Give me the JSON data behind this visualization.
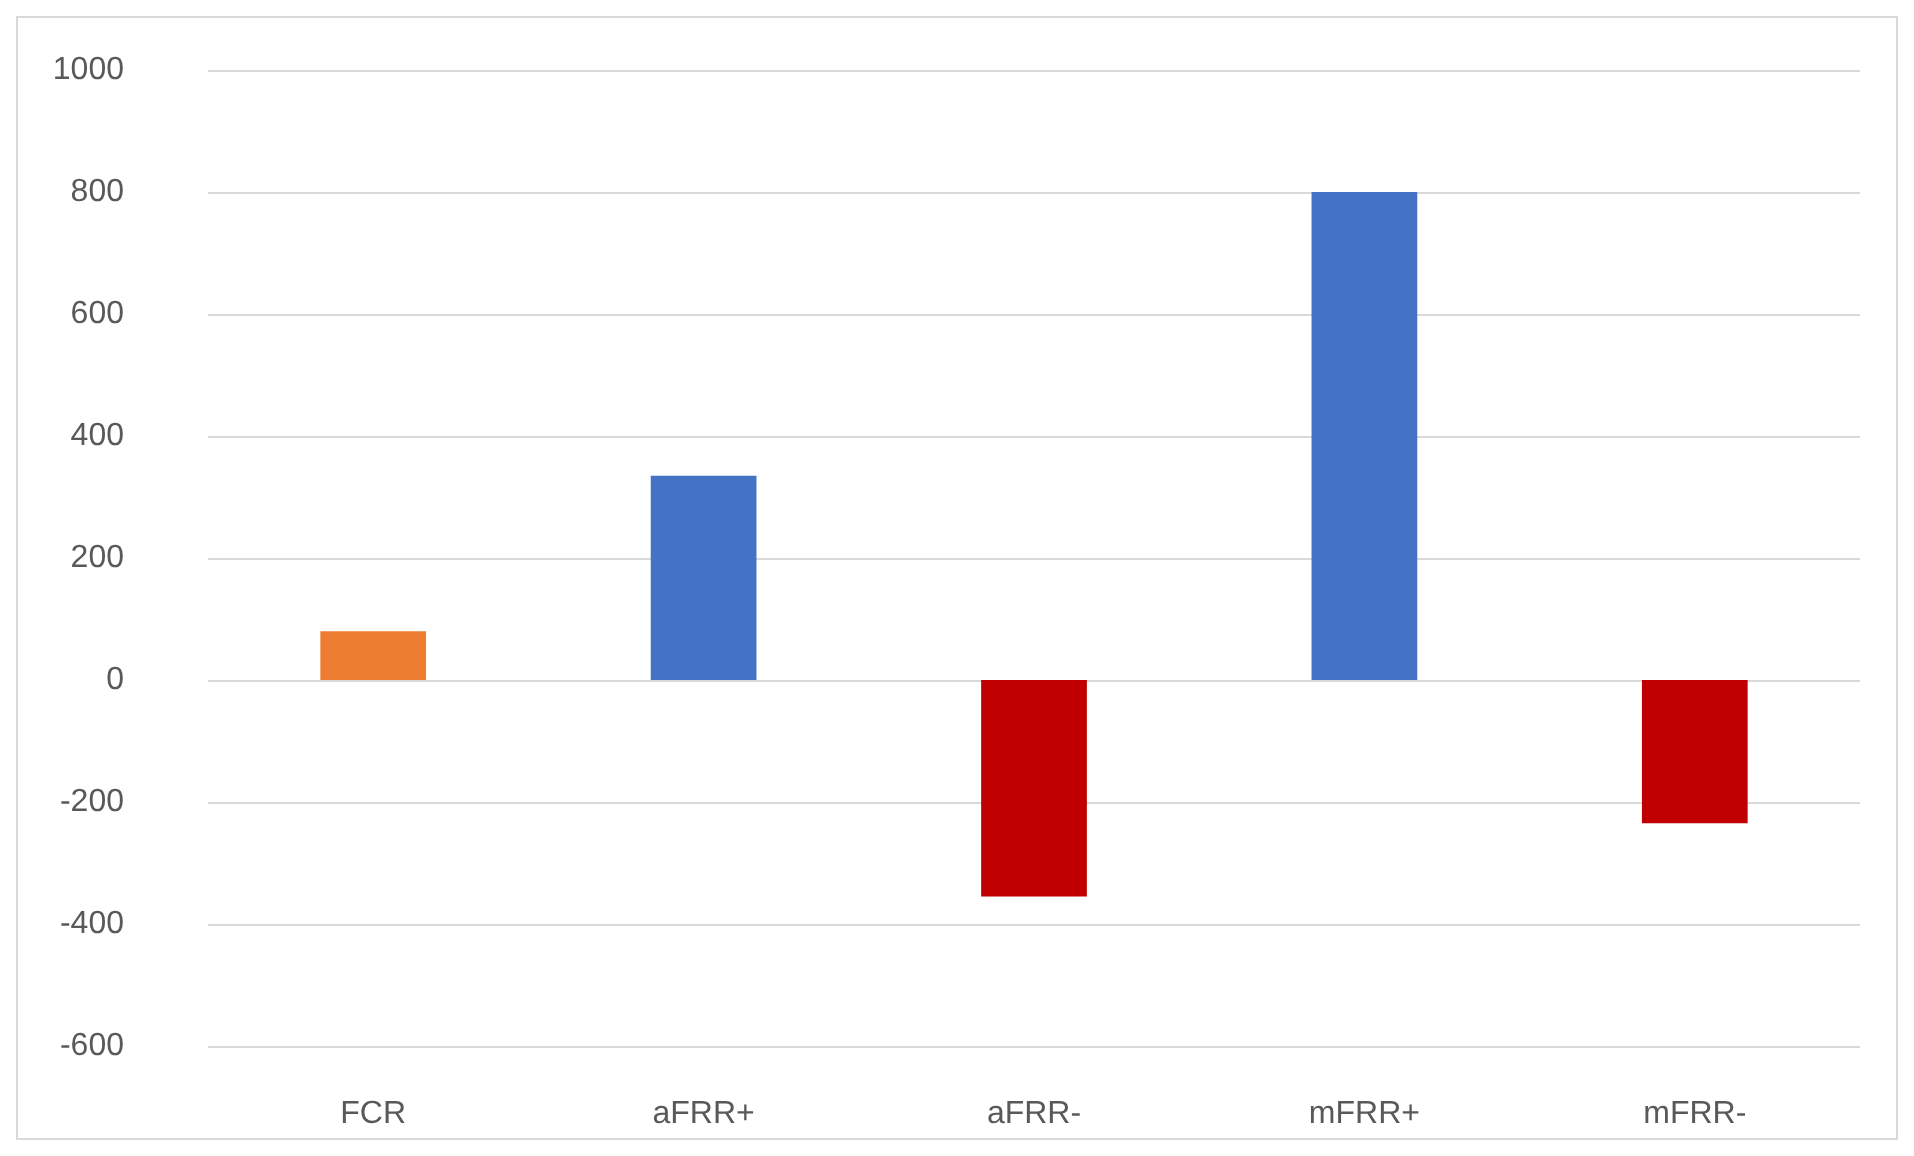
{
  "chart_data": {
    "type": "bar",
    "categories": [
      "FCR",
      "aFRR+",
      "aFRR-",
      "mFRR+",
      "mFRR-"
    ],
    "values": [
      80,
      335,
      -355,
      800,
      -235
    ],
    "colors": [
      "#ed7d31",
      "#4472c4",
      "#c00000",
      "#4472c4",
      "#c00000"
    ],
    "ylim": [
      -600,
      1000
    ],
    "yticks": [
      -600,
      -400,
      -200,
      0,
      200,
      400,
      600,
      800,
      1000
    ],
    "grid": "y"
  }
}
